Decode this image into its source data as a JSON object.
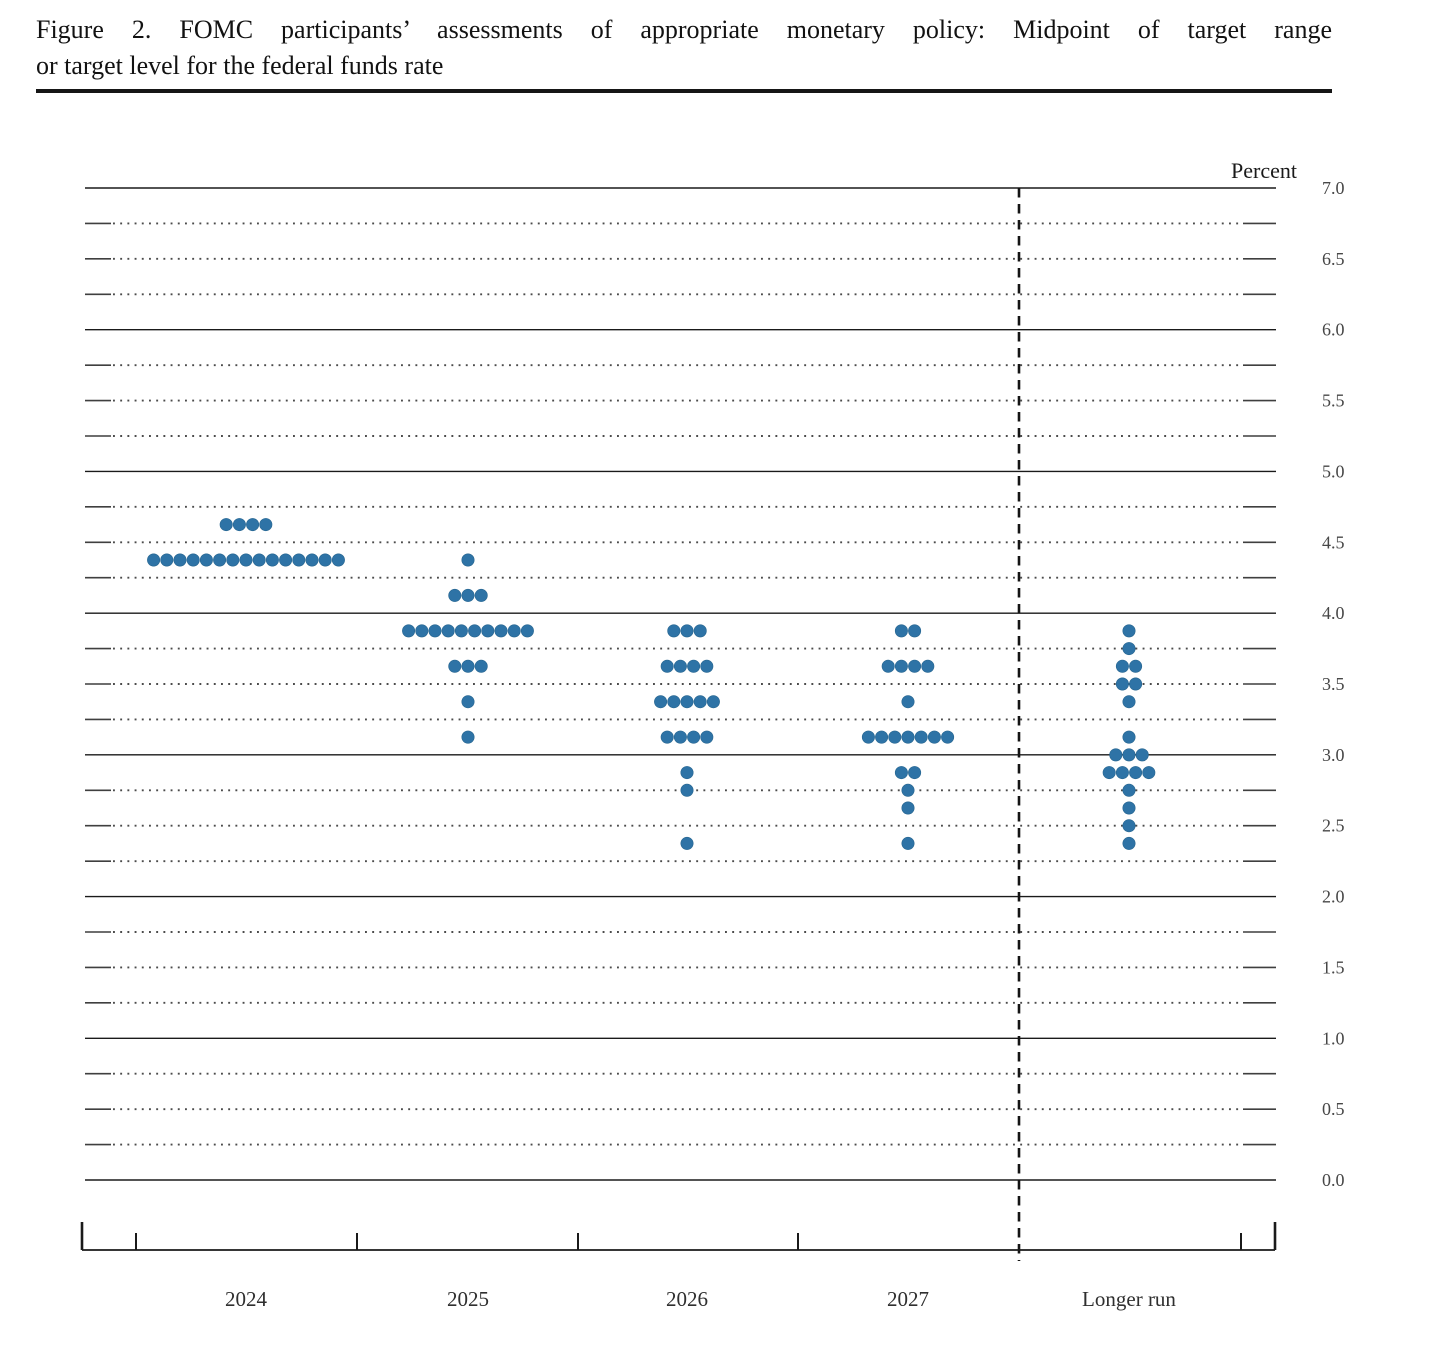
{
  "figure": {
    "title_line1": "Figure 2.  FOMC participants’ assessments of appropriate monetary policy:  Midpoint of target range",
    "title_line2": "or target level for the federal funds rate"
  },
  "chart_data": {
    "type": "scatter",
    "title": "FOMC participants’ assessments of appropriate monetary policy: Midpoint of target range or target level for the federal funds rate",
    "unit_label": "Percent",
    "ylabel": "Percent",
    "ylim": [
      0.0,
      7.0
    ],
    "y_axis": {
      "min": 0.0,
      "max": 7.0,
      "label_step": 0.5,
      "grid_step": 0.25,
      "tick_labels": [
        "7.0",
        "6.5",
        "6.0",
        "5.5",
        "5.0",
        "4.5",
        "4.0",
        "3.5",
        "3.0",
        "2.5",
        "2.0",
        "1.5",
        "1.0",
        "0.5",
        "0.0"
      ]
    },
    "grid": true,
    "legend_position": "none",
    "categories": [
      "2024",
      "2025",
      "2026",
      "2027",
      "Longer run"
    ],
    "dot_color": "#2e73a6",
    "separator": {
      "between": [
        "2027",
        "Longer run"
      ],
      "style": "dashed"
    },
    "series": [
      {
        "name": "2024",
        "dots": [
          {
            "rate": 4.625,
            "count": 4
          },
          {
            "rate": 4.375,
            "count": 15
          }
        ]
      },
      {
        "name": "2025",
        "dots": [
          {
            "rate": 4.375,
            "count": 1
          },
          {
            "rate": 4.125,
            "count": 3
          },
          {
            "rate": 3.875,
            "count": 10
          },
          {
            "rate": 3.625,
            "count": 3
          },
          {
            "rate": 3.375,
            "count": 1
          },
          {
            "rate": 3.125,
            "count": 1
          }
        ]
      },
      {
        "name": "2026",
        "dots": [
          {
            "rate": 3.875,
            "count": 3
          },
          {
            "rate": 3.625,
            "count": 4
          },
          {
            "rate": 3.375,
            "count": 5
          },
          {
            "rate": 3.125,
            "count": 4
          },
          {
            "rate": 2.875,
            "count": 1
          },
          {
            "rate": 2.75,
            "count": 1
          },
          {
            "rate": 2.375,
            "count": 1
          }
        ]
      },
      {
        "name": "2027",
        "dots": [
          {
            "rate": 3.875,
            "count": 2
          },
          {
            "rate": 3.625,
            "count": 4
          },
          {
            "rate": 3.375,
            "count": 1
          },
          {
            "rate": 3.125,
            "count": 7
          },
          {
            "rate": 2.875,
            "count": 2
          },
          {
            "rate": 2.75,
            "count": 1
          },
          {
            "rate": 2.625,
            "count": 1
          },
          {
            "rate": 2.375,
            "count": 1
          }
        ]
      },
      {
        "name": "Longer run",
        "dots": [
          {
            "rate": 3.875,
            "count": 1
          },
          {
            "rate": 3.75,
            "count": 1
          },
          {
            "rate": 3.625,
            "count": 2
          },
          {
            "rate": 3.5,
            "count": 2
          },
          {
            "rate": 3.375,
            "count": 1
          },
          {
            "rate": 3.125,
            "count": 1
          },
          {
            "rate": 3.0,
            "count": 3
          },
          {
            "rate": 2.875,
            "count": 4
          },
          {
            "rate": 2.75,
            "count": 1
          },
          {
            "rate": 2.625,
            "count": 1
          },
          {
            "rate": 2.5,
            "count": 1
          },
          {
            "rate": 2.375,
            "count": 1
          }
        ]
      }
    ]
  }
}
